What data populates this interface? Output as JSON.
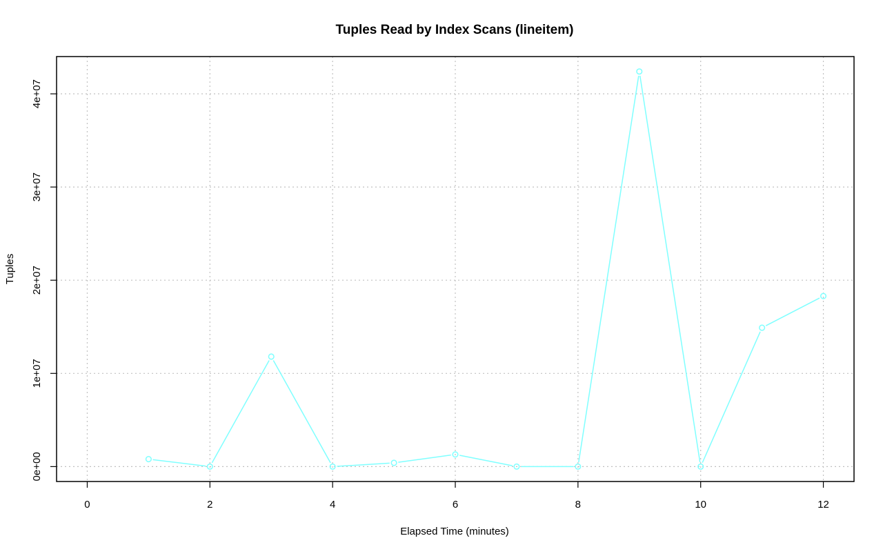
{
  "chart_data": {
    "type": "line",
    "title": "Tuples Read by Index Scans (lineitem)",
    "xlabel": "Elapsed Time (minutes)",
    "ylabel": "Tuples",
    "xlim": [
      -0.5,
      12.5
    ],
    "ylim": [
      -1600000,
      44000000
    ],
    "x_ticks": [
      0,
      2,
      4,
      6,
      8,
      10,
      12
    ],
    "x_tick_labels": [
      "0",
      "2",
      "4",
      "6",
      "8",
      "10",
      "12"
    ],
    "y_ticks": [
      0,
      10000000,
      20000000,
      30000000,
      40000000
    ],
    "y_tick_labels": [
      "0e+00",
      "1e+07",
      "2e+07",
      "3e+07",
      "4e+07"
    ],
    "grid": true,
    "series": [
      {
        "color": "#7fffff",
        "x": [
          1,
          2,
          3,
          4,
          5,
          6,
          7,
          8,
          9,
          10,
          11,
          12
        ],
        "values": [
          800000,
          0,
          11800000,
          0,
          400000,
          1300000,
          0,
          0,
          42400000,
          0,
          14900000,
          18300000
        ]
      }
    ]
  }
}
